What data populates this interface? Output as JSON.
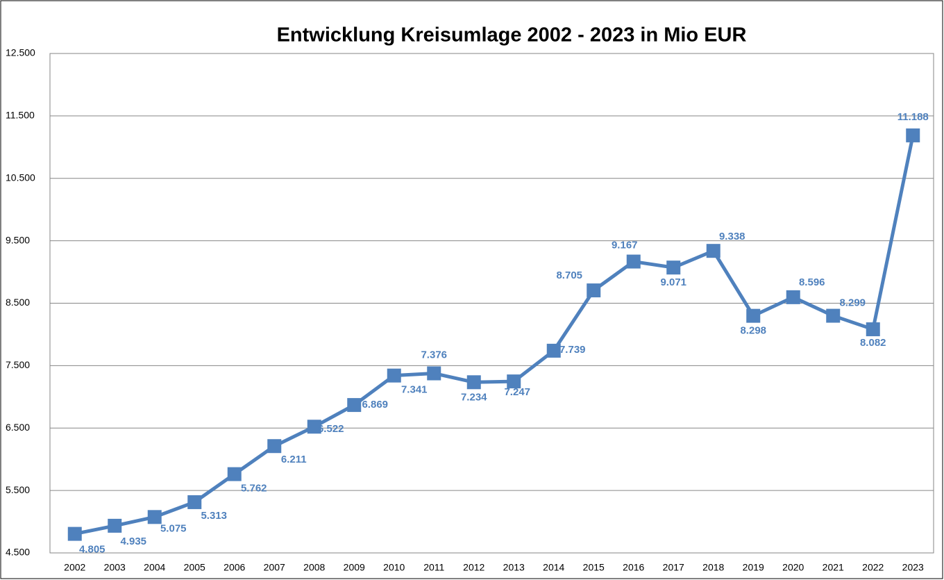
{
  "chart_data": {
    "type": "line",
    "title": "Entwicklung Kreisumlage 2002 - 2023 in Mio EUR",
    "categories": [
      "2002",
      "2003",
      "2004",
      "2005",
      "2006",
      "2007",
      "2008",
      "2009",
      "2010",
      "2011",
      "2012",
      "2013",
      "2014",
      "2015",
      "2016",
      "2017",
      "2018",
      "2019",
      "2020",
      "2021",
      "2022",
      "2023"
    ],
    "series": [
      {
        "color": "#4f81bd",
        "values": [
          4805,
          4935,
          5075,
          5313,
          5762,
          6211,
          6522,
          6869,
          7341,
          7376,
          7234,
          7247,
          7739,
          8705,
          9167,
          9071,
          9338,
          8298,
          8596,
          8299,
          8082,
          11188
        ],
        "value_labels": [
          "4.805",
          "4.935",
          "5.075",
          "5.313",
          "5.762",
          "6.211",
          "6.522",
          "6.869",
          "7.341",
          "7.376",
          "7.234",
          "7.247",
          "7.739",
          "8.705",
          "9.167",
          "9.071",
          "9.338",
          "8.298",
          "8.596",
          "8.299",
          "8.082",
          "11.188"
        ]
      }
    ],
    "ylim": [
      4500,
      12500
    ],
    "yticks": [
      {
        "value": 4500,
        "label": "4.500"
      },
      {
        "value": 5500,
        "label": "5.500"
      },
      {
        "value": 6500,
        "label": "6.500"
      },
      {
        "value": 7500,
        "label": "7.500"
      },
      {
        "value": 8500,
        "label": "8.500"
      },
      {
        "value": 9500,
        "label": "9.500"
      },
      {
        "value": 10500,
        "label": "10.500"
      },
      {
        "value": 11500,
        "label": "11.500"
      },
      {
        "value": 12500,
        "label": "12.500"
      }
    ],
    "grid": true
  }
}
